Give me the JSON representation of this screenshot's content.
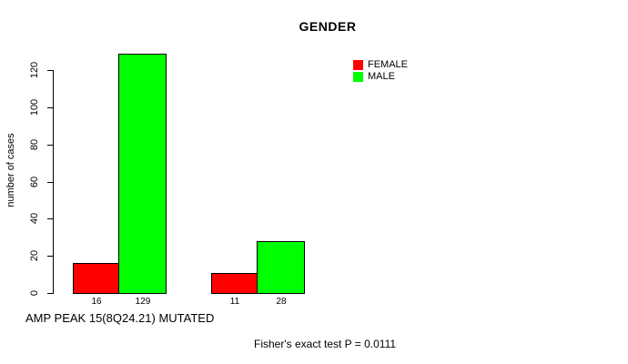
{
  "colors": {
    "background": "#FFFFFF",
    "axis": "#000000",
    "text": "#000000",
    "female": "#FF0000",
    "male": "#00FF00"
  },
  "chart_data": {
    "type": "bar",
    "title": "GENDER",
    "ylabel": "number of cases",
    "xlabel": "AMP PEAK 15(8Q24.21) MUTATED",
    "annotation": "Fisher's exact test P = 0.0111",
    "series": [
      {
        "name": "FEMALE",
        "color": "#FF0000",
        "values": [
          16,
          11
        ]
      },
      {
        "name": "MALE",
        "color": "#00FF00",
        "values": [
          129,
          28
        ]
      }
    ],
    "bar_value_labels": [
      [
        "16",
        "129"
      ],
      [
        "11",
        "28"
      ]
    ],
    "y_ticks": [
      0,
      20,
      40,
      60,
      80,
      100,
      120
    ],
    "ylim": [
      0,
      129
    ],
    "grid": false,
    "legend_position": "top-right",
    "x_axis_line": false
  }
}
